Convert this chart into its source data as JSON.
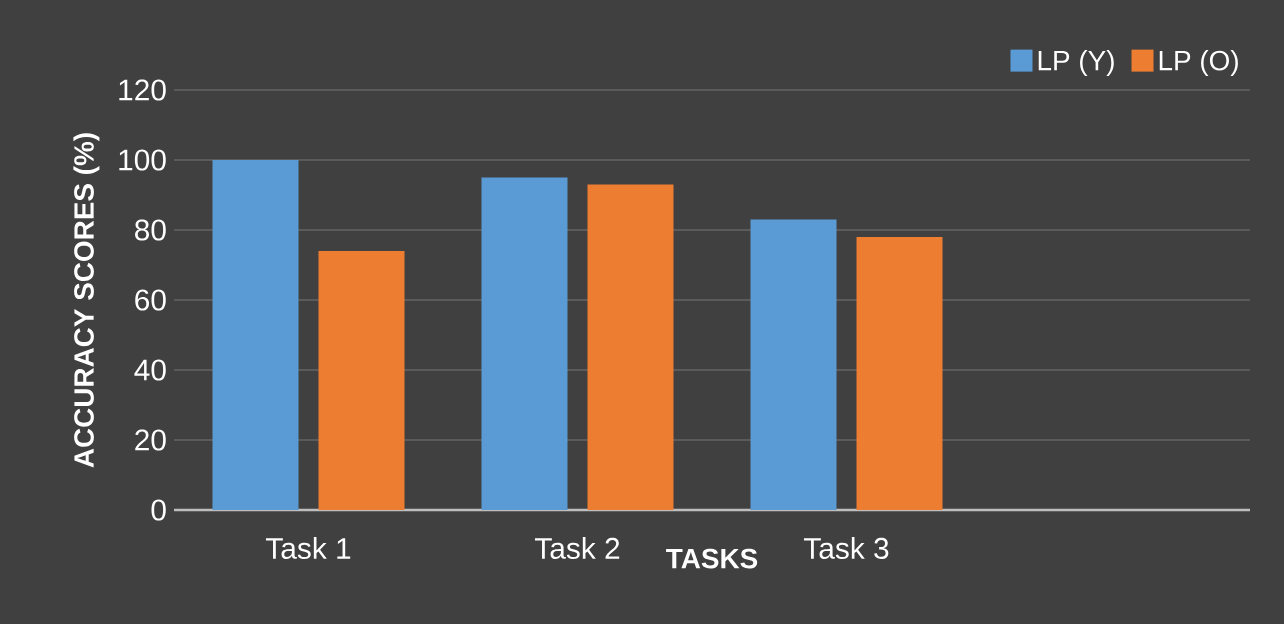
{
  "chart_data": {
    "type": "bar",
    "xlabel": "TASKS",
    "ylabel": "ACCURACY SCORES (%)",
    "categories": [
      "Task 1",
      "Task 2",
      "Task 3",
      null
    ],
    "series": [
      {
        "name": "LP (Y)",
        "color": "#5b9bd5",
        "values": [
          100,
          95,
          83,
          null
        ]
      },
      {
        "name": "LP (O)",
        "color": "#ed7d31",
        "values": [
          74,
          93,
          78,
          null
        ]
      }
    ],
    "ylim": [
      0,
      120
    ],
    "yticks": [
      0,
      20,
      40,
      60,
      80,
      100,
      120
    ],
    "grid": "y",
    "legend": "top right"
  }
}
